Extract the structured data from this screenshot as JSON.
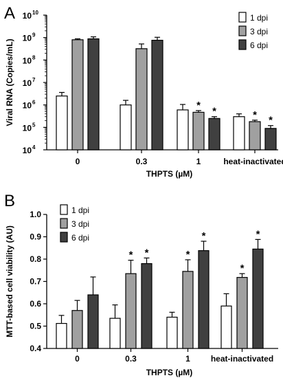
{
  "panels": [
    {
      "letter": "A",
      "chart_data": {
        "type": "bar",
        "yscale": "log",
        "ylim": [
          10000,
          10000000000
        ],
        "ytick_labels": [
          {
            "base": "10",
            "exp": "4"
          },
          {
            "base": "10",
            "exp": "5"
          },
          {
            "base": "10",
            "exp": "6"
          },
          {
            "base": "10",
            "exp": "7"
          },
          {
            "base": "10",
            "exp": "8"
          },
          {
            "base": "10",
            "exp": "9"
          },
          {
            "base": "10",
            "exp": "10"
          }
        ],
        "categories": [
          "0",
          "0.3",
          "1",
          "heat-inactivated"
        ],
        "xlabel": "THPTS (µM)",
        "ylabel": "Viral RNA (Copies/mL)",
        "legend_position": "top-right",
        "series": [
          {
            "name": "1 dpi",
            "color": "#ffffff",
            "values": [
              2500000,
              1000000,
              600000,
              300000
            ],
            "errors": [
              3600000,
              1600000,
              1050000,
              400000
            ],
            "significant": [
              false,
              false,
              false,
              false
            ]
          },
          {
            "name": "3 dpi",
            "color": "#a0a0a0",
            "values": [
              800000000,
              320000000,
              470000,
              180000
            ],
            "errors": [
              880000000,
              520000000,
              560000,
              210000
            ],
            "significant": [
              false,
              false,
              true,
              true
            ]
          },
          {
            "name": "6 dpi",
            "color": "#404040",
            "values": [
              880000000,
              760000000,
              250000,
              90000
            ],
            "errors": [
              1080000000,
              1030000000,
              300000,
              120000
            ],
            "significant": [
              false,
              false,
              true,
              true
            ]
          }
        ]
      }
    },
    {
      "letter": "B",
      "chart_data": {
        "type": "bar",
        "yscale": "linear",
        "ylim": [
          0.4,
          1.0
        ],
        "yticks": [
          "0.4",
          "0.5",
          "0.6",
          "0.7",
          "0.8",
          "0.9",
          "1.0"
        ],
        "categories": [
          "0",
          "0.3",
          "1",
          "heat-inactivated"
        ],
        "xlabel": "THPTS (µM)",
        "ylabel": "MTT-based cell viability (AU)",
        "legend_position": "top-left",
        "series": [
          {
            "name": "1 dpi",
            "color": "#ffffff",
            "values": [
              0.512,
              0.535,
              0.54,
              0.59
            ],
            "errors": [
              0.548,
              0.595,
              0.562,
              0.645
            ],
            "significant": [
              false,
              false,
              false,
              false
            ]
          },
          {
            "name": "3 dpi",
            "color": "#a0a0a0",
            "values": [
              0.57,
              0.735,
              0.745,
              0.718
            ],
            "errors": [
              0.615,
              0.795,
              0.797,
              0.735
            ],
            "significant": [
              false,
              true,
              true,
              true
            ]
          },
          {
            "name": "6 dpi",
            "color": "#404040",
            "values": [
              0.64,
              0.78,
              0.838,
              0.845
            ],
            "errors": [
              0.72,
              0.805,
              0.88,
              0.888
            ],
            "significant": [
              false,
              true,
              true,
              true
            ]
          }
        ]
      }
    }
  ]
}
